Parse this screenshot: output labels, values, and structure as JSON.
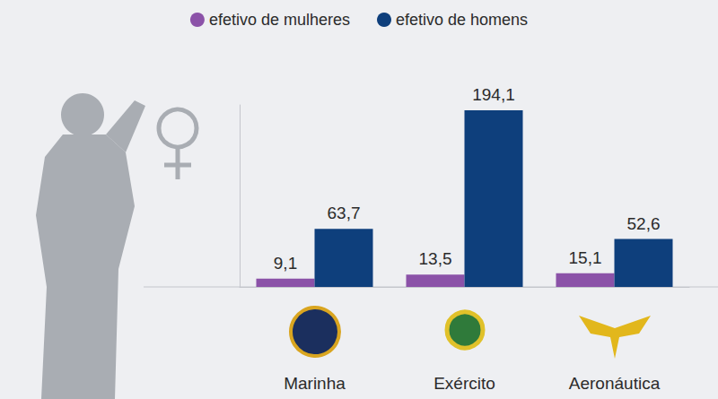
{
  "chart_data": {
    "type": "bar",
    "categories": [
      "Marinha",
      "Exército",
      "Aeronáutica"
    ],
    "series": [
      {
        "name": "efetivo de mulheres",
        "color": "#8b52a8",
        "values": [
          9.1,
          13.5,
          15.1
        ],
        "value_labels": [
          "9,1",
          "13,5",
          "15,1"
        ]
      },
      {
        "name": "efetivo de homens",
        "color": "#0e3f7c",
        "values": [
          63.7,
          194.1,
          52.6
        ],
        "value_labels": [
          "63,7",
          "194,1",
          "52,6"
        ]
      }
    ],
    "ylim": [
      0,
      200
    ],
    "data_labels": true,
    "tick_labels": "x",
    "legend": "top"
  }
}
